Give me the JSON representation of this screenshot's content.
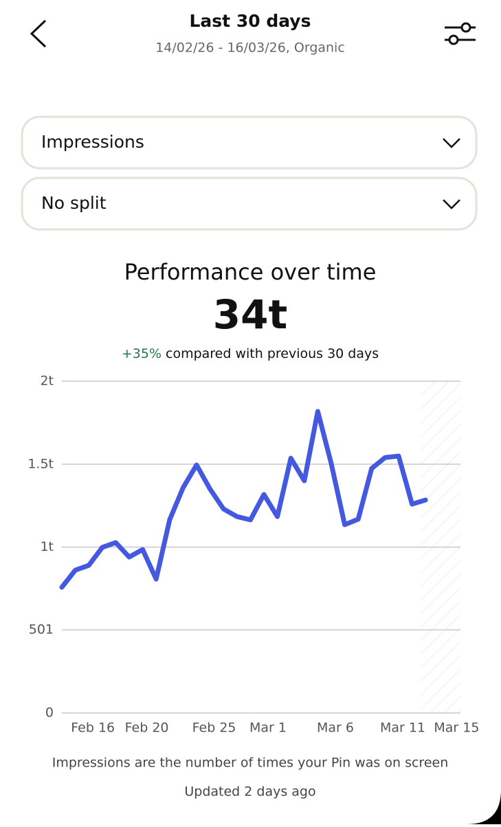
{
  "header": {
    "title": "Last 30 days",
    "subtitle": "14/02/26 - 16/03/26, Organic"
  },
  "dropdowns": [
    {
      "label": "Impressions"
    },
    {
      "label": "No split"
    }
  ],
  "summary": {
    "title": "Performance over time",
    "total": "34t",
    "change": "+35%",
    "comparison": "compared with previous 30 days"
  },
  "chart_data": {
    "type": "line",
    "categories": [
      null,
      null,
      "Feb 16",
      null,
      null,
      null,
      "Feb 20",
      null,
      null,
      null,
      null,
      "Feb 25",
      null,
      null,
      null,
      "Mar 1",
      null,
      null,
      null,
      null,
      "Mar 6",
      null,
      null,
      null,
      null,
      "Mar 11",
      null,
      null,
      null,
      "Mar 15"
    ],
    "series": [
      {
        "name": "Impressions",
        "color": "#4559e0",
        "values": [
          758,
          861,
          890,
          998,
          1027,
          940,
          985,
          807,
          1164,
          1358,
          1495,
          1350,
          1230,
          1184,
          1164,
          1317,
          1184,
          1536,
          1400,
          1818,
          1503,
          1135,
          1168,
          1474,
          1540,
          1549,
          1259,
          1284,
          null,
          null
        ]
      }
    ],
    "ylim": [
      0,
      2000
    ],
    "yticks": [
      0,
      501,
      {
        "value": 1000,
        "label": "1t"
      },
      {
        "value": 1500,
        "label": "1.5t"
      },
      {
        "value": 2000,
        "label": "2t"
      }
    ],
    "grid": true
  },
  "footer": {
    "note": "Impressions are the number of times your Pin was on screen",
    "updated": "Updated 2 days ago"
  }
}
